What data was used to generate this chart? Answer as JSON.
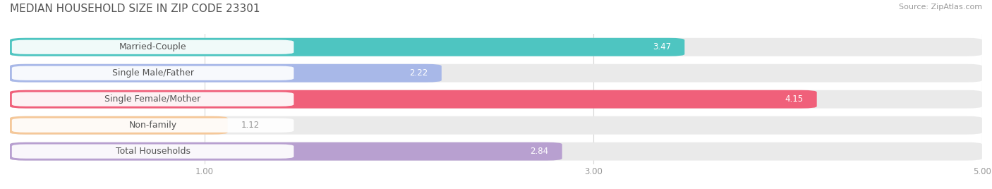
{
  "title": "MEDIAN HOUSEHOLD SIZE IN ZIP CODE 23301",
  "source": "Source: ZipAtlas.com",
  "categories": [
    "Married-Couple",
    "Single Male/Father",
    "Single Female/Mother",
    "Non-family",
    "Total Households"
  ],
  "values": [
    3.47,
    2.22,
    4.15,
    1.12,
    2.84
  ],
  "bar_colors": [
    "#4ec5c1",
    "#a8b8e8",
    "#f0607a",
    "#f5c89a",
    "#b8a0d0"
  ],
  "bar_bg_color": "#eaeaea",
  "xlim_data": [
    0,
    5.0
  ],
  "xticks": [
    1.0,
    3.0,
    5.0
  ],
  "label_color_inside": "#ffffff",
  "label_color_outside": "#999999",
  "title_fontsize": 11,
  "source_fontsize": 8,
  "tick_fontsize": 8.5,
  "bar_label_fontsize": 8.5,
  "category_fontsize": 9,
  "background_color": "#ffffff",
  "pill_bg": "#ffffff",
  "pill_color": "#555555",
  "grid_color": "#d8d8d8"
}
